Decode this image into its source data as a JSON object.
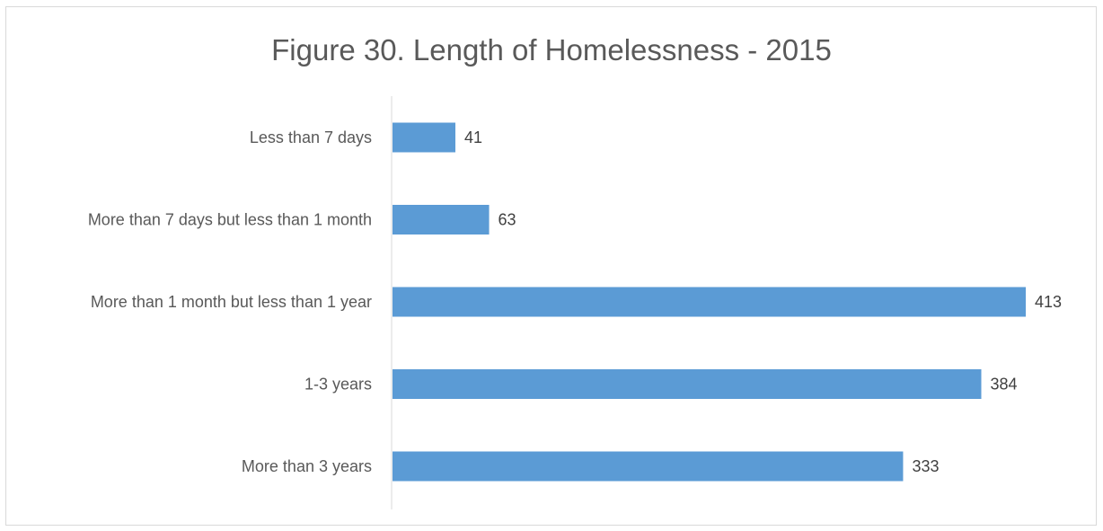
{
  "chart_data": {
    "type": "bar",
    "orientation": "horizontal",
    "title": "Figure 30. Length of Homelessness - 2015",
    "categories": [
      "Less than 7 days",
      "More than 7 days but less than 1 month",
      "More than 1 month but less than 1 year",
      "1-3 years",
      "More than 3 years"
    ],
    "values": [
      41,
      63,
      413,
      384,
      333
    ],
    "xlim": [
      0,
      413
    ],
    "grid": false,
    "legend": "none",
    "data_labels": true,
    "bar_color": "#5b9bd5",
    "axis_color": "#d9d9d9",
    "text_color": "#595959"
  }
}
